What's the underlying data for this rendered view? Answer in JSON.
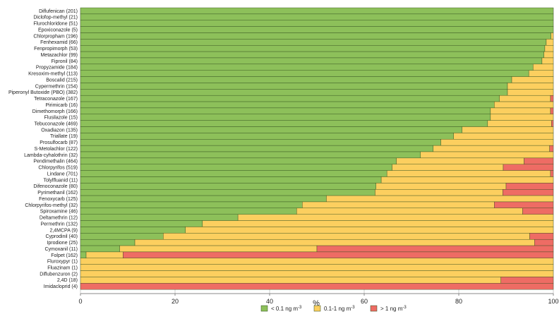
{
  "chart_data": {
    "type": "bar",
    "orientation": "horizontal",
    "stacked": true,
    "xlabel": "%",
    "xlim": [
      0,
      100
    ],
    "xticks": [
      0,
      20,
      40,
      60,
      80,
      100
    ],
    "grid": true,
    "legend_position": "bottom",
    "categories": [
      "Diflufenican (201)",
      "Diclofop-methyl (21)",
      "Flurochloridone (51)",
      "Epoxiconazole (5)",
      "Chlorpropham (196)",
      "Fenhexamid (66)",
      "Fenpropimorph (53)",
      "Metazachlor (99)",
      "Fipronil (84)",
      "Propyzamide (184)",
      "Kresoxim-methyl (113)",
      "Boscalid (215)",
      "Cypermethrin (154)",
      "Piperonyl Butoxide (PBO) (382)",
      "Tetraconazole (167)",
      "Pirimicarb (16)",
      "Dimethomorph (166)",
      "Flusilazole (15)",
      "Tebuconazole (469)",
      "Oxadiazon (135)",
      "Triallate (19)",
      "Prosulfocarb (87)",
      "S-Metolachlor (122)",
      "Lambda-cyhalothrin (32)",
      "Pendimethalin (464)",
      "Chlorpyrifos (519)",
      "Lindane (701)",
      "Tolylfluanid (11)",
      "Difenoconazole (80)",
      "Pyrimethanil (162)",
      "Fenoxycarb (125)",
      "Chlorpyrifos-methyl (32)",
      "Spiroxamine (46)",
      "Deltamethrin (12)",
      "Permethrin (132)",
      "2,4MCPA (9)",
      "Cyprodinil (40)",
      "Iprodione (25)",
      "Cymoxanil (11)",
      "Folpet (162)",
      "Fluroxypyr (1)",
      "Fluazinam (1)",
      "Diflubenzuron (2)",
      "2,4D (18)",
      "Imidacloprid (4)"
    ],
    "series": [
      {
        "name": "< 0.1 ng m",
        "name_sup": "-3",
        "color": "#8dc05a",
        "values": [
          100,
          100,
          100,
          100,
          99.5,
          98.5,
          98.2,
          98,
          97.6,
          95.7,
          94.8,
          91.2,
          90.3,
          90.3,
          88.6,
          87.5,
          86.7,
          86.7,
          86.1,
          80.7,
          78.9,
          76.2,
          74.6,
          71.9,
          66.8,
          65.9,
          64.8,
          63.6,
          62.5,
          62.3,
          52.0,
          46.9,
          45.7,
          33.3,
          25.8,
          22.2,
          17.5,
          11.5,
          8.3,
          1.2,
          0,
          0,
          0,
          0,
          0
        ]
      },
      {
        "name": "0.1-1 ng m",
        "name_sup": "-3",
        "color": "#fccf5f",
        "values": [
          0,
          0,
          0,
          0,
          0.5,
          1.5,
          1.8,
          2.0,
          2.4,
          4.3,
          5.2,
          8.8,
          9.7,
          9.7,
          10.8,
          12.5,
          12.7,
          13.3,
          13.5,
          19.3,
          21.1,
          23.8,
          24.6,
          28.1,
          27.0,
          23.5,
          34.6,
          36.4,
          27.5,
          27.0,
          48.0,
          40.6,
          47.8,
          66.7,
          74.2,
          77.8,
          77.5,
          84.5,
          41.7,
          7.8,
          100,
          100,
          100,
          88.9,
          0
        ]
      },
      {
        "name": "> 1 ng m",
        "name_sup": "-3",
        "color": "#ee6c64",
        "values": [
          0,
          0,
          0,
          0,
          0,
          0,
          0,
          0,
          0,
          0,
          0,
          0,
          0,
          0,
          0.6,
          0,
          0.6,
          0,
          0.4,
          0,
          0,
          0,
          0.8,
          0,
          6.2,
          10.6,
          0.6,
          0,
          10.0,
          10.7,
          0,
          12.5,
          6.5,
          0,
          0,
          0,
          5.0,
          4.0,
          50.0,
          91.0,
          0,
          0,
          0,
          11.1,
          100
        ]
      }
    ]
  }
}
